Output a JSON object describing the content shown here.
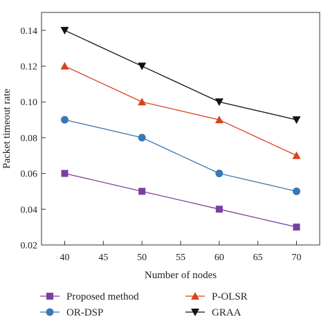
{
  "chart_data": {
    "type": "line",
    "xlabel": "Number of nodes",
    "ylabel": "Packet timeout rate",
    "xlim": [
      37,
      73
    ],
    "ylim": [
      0.02,
      0.15
    ],
    "xticks": [
      "40",
      "45",
      "50",
      "55",
      "60",
      "65",
      "70"
    ],
    "yticks": [
      "0.02",
      "0.04",
      "0.06",
      "0.08",
      "0.10",
      "0.12",
      "0.14"
    ],
    "x": [
      40,
      50,
      60,
      70
    ],
    "grid": false,
    "legend_position": "bottom",
    "series": [
      {
        "name": "Proposed method",
        "values": [
          0.06,
          0.05,
          0.04,
          0.03
        ],
        "color": "#7b3fa0",
        "marker": "square"
      },
      {
        "name": "OR-DSP",
        "values": [
          0.09,
          0.08,
          0.06,
          0.05
        ],
        "color": "#3a78b5",
        "marker": "circle"
      },
      {
        "name": "P-OLSR",
        "values": [
          0.12,
          0.1,
          0.09,
          0.07
        ],
        "color": "#d9421e",
        "marker": "triangle-up"
      },
      {
        "name": "GRAA",
        "values": [
          0.14,
          0.12,
          0.1,
          0.09
        ],
        "color": "#111111",
        "marker": "triangle-down"
      }
    ]
  }
}
